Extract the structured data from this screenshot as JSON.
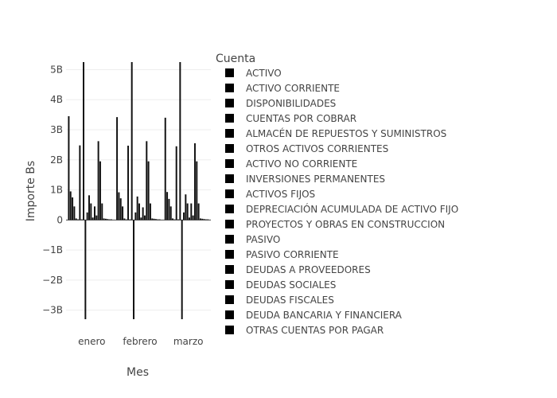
{
  "chart_data": {
    "type": "bar",
    "xlabel": "Mes",
    "ylabel": "Importe Bs",
    "legend_title": "Cuenta",
    "legend_placement": "right",
    "ylim": [
      -3.3,
      5.25
    ],
    "y_unit": "B",
    "yticks": [
      {
        "value": 5,
        "label": "5B"
      },
      {
        "value": 4,
        "label": "4B"
      },
      {
        "value": 3,
        "label": "3B"
      },
      {
        "value": 2,
        "label": "2B"
      },
      {
        "value": 1,
        "label": "1B"
      },
      {
        "value": 0,
        "label": "0"
      },
      {
        "value": -1,
        "label": "−1B"
      },
      {
        "value": -2,
        "label": "−2B"
      },
      {
        "value": -3,
        "label": "−3B"
      }
    ],
    "categories": [
      "enero",
      "febrero",
      "marzo"
    ],
    "grid": true,
    "series": [
      {
        "name": "ACTIVO",
        "values": [
          3.45,
          3.42,
          3.4
        ]
      },
      {
        "name": "ACTIVO CORRIENTE",
        "values": [
          0.95,
          0.92,
          0.93
        ]
      },
      {
        "name": "DISPONIBILIDADES",
        "values": [
          0.75,
          0.72,
          0.7
        ]
      },
      {
        "name": "CUENTAS POR COBRAR",
        "values": [
          0.45,
          0.45,
          0.45
        ]
      },
      {
        "name": "ALMACÉN DE REPUESTOS Y SUMINISTROS",
        "values": [
          0.05,
          0.05,
          0.05
        ]
      },
      {
        "name": "OTROS ACTIVOS CORRIENTES",
        "values": [
          0.02,
          0.02,
          0.02
        ]
      },
      {
        "name": "ACTIVO NO CORRIENTE",
        "values": [
          2.48,
          2.47,
          2.45
        ]
      },
      {
        "name": "INVERSIONES PERMANENTES",
        "values": [
          0.02,
          0.02,
          0.02
        ]
      },
      {
        "name": "ACTIVOS FIJOS",
        "values": [
          5.25,
          5.25,
          5.25
        ]
      },
      {
        "name": "DEPRECIACIÓN ACUMULADA DE ACTIVO FIJO",
        "values": [
          -3.3,
          -3.3,
          -3.3
        ]
      },
      {
        "name": "PROYECTOS Y OBRAS EN CONSTRUCCION",
        "values": [
          0.25,
          0.25,
          0.25
        ]
      },
      {
        "name": "PASIVO",
        "values": [
          0.82,
          0.78,
          0.85
        ]
      },
      {
        "name": "PASIVO CORRIENTE",
        "values": [
          0.55,
          0.55,
          0.55
        ]
      },
      {
        "name": "DEUDAS A PROVEEDORES",
        "values": [
          0.08,
          0.08,
          0.08
        ]
      },
      {
        "name": "DEUDAS SOCIALES",
        "values": [
          0.45,
          0.42,
          0.55
        ]
      },
      {
        "name": "DEUDAS FISCALES",
        "values": [
          0.15,
          0.15,
          0.15
        ]
      },
      {
        "name": "DEUDA BANCARIA Y FINANCIERA",
        "values": [
          2.62,
          2.62,
          2.55
        ]
      },
      {
        "name": "OTRAS CUENTAS POR PAGAR",
        "values": [
          1.95,
          1.95,
          1.95
        ]
      },
      {
        "name": "",
        "values": [
          0.55,
          0.55,
          0.55
        ]
      },
      {
        "name": "",
        "values": [
          0.05,
          0.05,
          0.05
        ]
      },
      {
        "name": "",
        "values": [
          0.04,
          0.04,
          0.04
        ]
      },
      {
        "name": "",
        "values": [
          0.03,
          0.03,
          0.03
        ]
      },
      {
        "name": "",
        "values": [
          0.02,
          0.02,
          0.02
        ]
      },
      {
        "name": "",
        "values": [
          0.02,
          0.02,
          0.02
        ]
      }
    ],
    "colors": {
      "bar": "#111111",
      "legend_swatch": "#000000",
      "grid": "#eeeeee",
      "zero_line": "#444444"
    }
  }
}
